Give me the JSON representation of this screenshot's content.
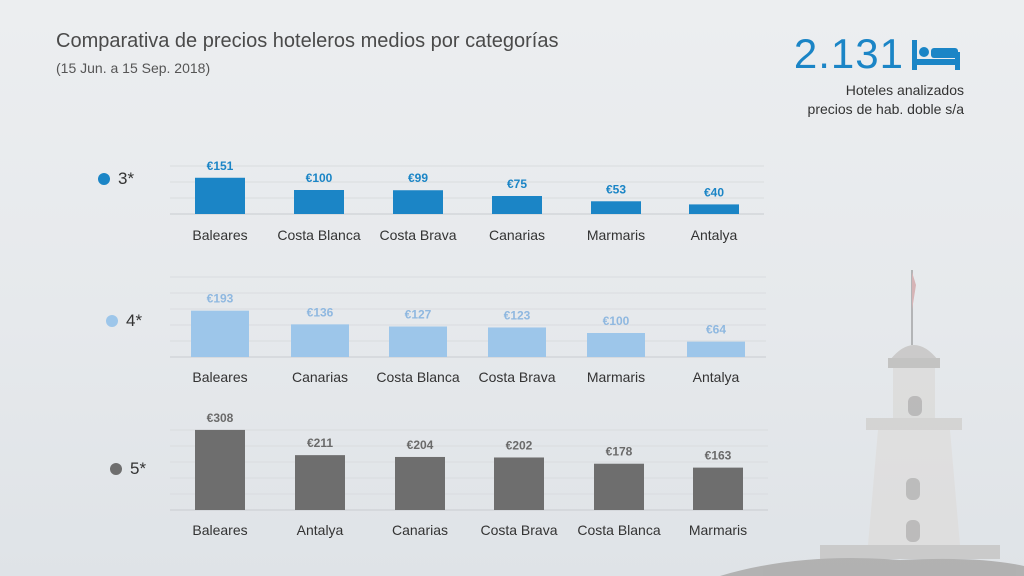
{
  "title": "Comparativa de precios hoteleros medios por categorías",
  "subtitle": "(15 Jun. a 15 Sep. 2018)",
  "kpi": {
    "number": "2.131",
    "line1": "Hoteles analizados",
    "line2": "precios de hab. doble s/a",
    "icon": "bed-icon",
    "color": "#1b85c6"
  },
  "chart_data": [
    {
      "type": "bar",
      "series_label": "3*",
      "color": "#1b85c6",
      "label_color": "#1b85c6",
      "categories": [
        "Baleares",
        "Costa Blanca",
        "Costa Brava",
        "Canarias",
        "Marmaris",
        "Antalya"
      ],
      "values": [
        151,
        100,
        99,
        75,
        53,
        40
      ],
      "labels": [
        "€151",
        "€100",
        "€99",
        "€75",
        "€53",
        "€40"
      ]
    },
    {
      "type": "bar",
      "series_label": "4*",
      "color": "#9dc6ea",
      "label_color": "#8fb8e0",
      "categories": [
        "Baleares",
        "Canarias",
        "Costa Blanca",
        "Costa Brava",
        "Marmaris",
        "Antalya"
      ],
      "values": [
        193,
        136,
        127,
        123,
        100,
        64
      ],
      "labels": [
        "€193",
        "€136",
        "€127",
        "€123",
        "€100",
        "€64"
      ]
    },
    {
      "type": "bar",
      "series_label": "5*",
      "color": "#6e6e6e",
      "label_color": "#6a6a6a",
      "categories": [
        "Baleares",
        "Antalya",
        "Canarias",
        "Costa Brava",
        "Costa Blanca",
        "Marmaris"
      ],
      "values": [
        308,
        211,
        204,
        202,
        178,
        163
      ],
      "labels": [
        "€308",
        "€211",
        "€204",
        "€202",
        "€178",
        "€163"
      ]
    }
  ]
}
